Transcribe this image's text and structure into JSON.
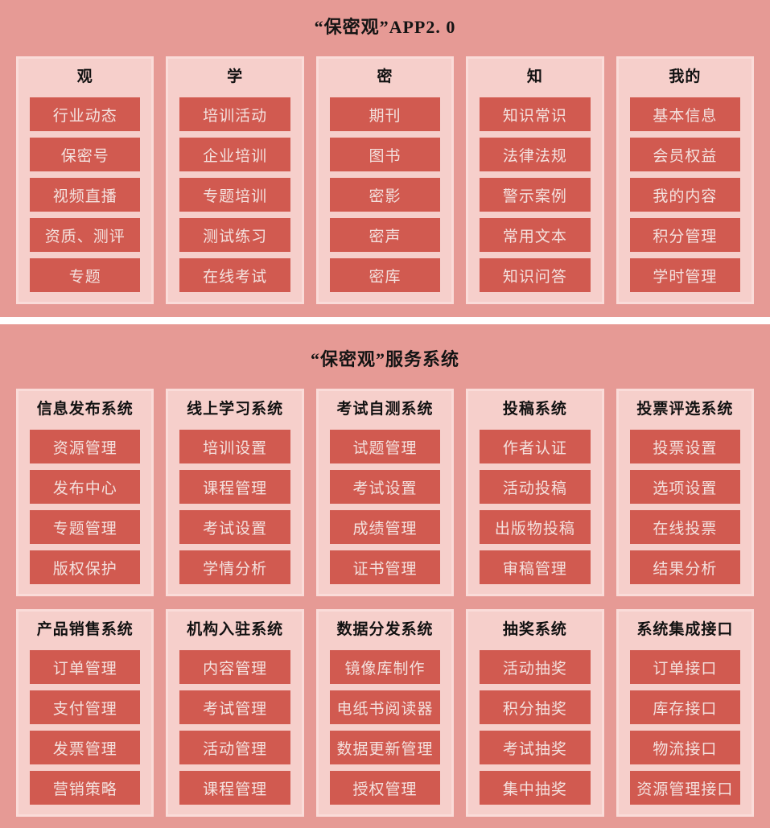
{
  "app_section": {
    "title": "“保密观”APP2. 0",
    "columns": [
      {
        "header": "观",
        "items": [
          "行业动态",
          "保密号",
          "视频直播",
          "资质、测评",
          "专题"
        ]
      },
      {
        "header": "学",
        "items": [
          "培训活动",
          "企业培训",
          "专题培训",
          "测试练习",
          "在线考试"
        ]
      },
      {
        "header": "密",
        "items": [
          "期刊",
          "图书",
          "密影",
          "密声",
          "密库"
        ]
      },
      {
        "header": "知",
        "items": [
          "知识常识",
          "法律法规",
          "警示案例",
          "常用文本",
          "知识问答"
        ]
      },
      {
        "header": "我的",
        "items": [
          "基本信息",
          "会员权益",
          "我的内容",
          "积分管理",
          "学时管理"
        ]
      }
    ]
  },
  "service_section": {
    "title": "“保密观”服务系统",
    "rows": [
      [
        {
          "header": "信息发布系统",
          "items": [
            "资源管理",
            "发布中心",
            "专题管理",
            "版权保护"
          ]
        },
        {
          "header": "线上学习系统",
          "items": [
            "培训设置",
            "课程管理",
            "考试设置",
            "学情分析"
          ]
        },
        {
          "header": "考试自测系统",
          "items": [
            "试题管理",
            "考试设置",
            "成绩管理",
            "证书管理"
          ]
        },
        {
          "header": "投稿系统",
          "items": [
            "作者认证",
            "活动投稿",
            "出版物投稿",
            "审稿管理"
          ]
        },
        {
          "header": "投票评选系统",
          "items": [
            "投票设置",
            "选项设置",
            "在线投票",
            "结果分析"
          ]
        }
      ],
      [
        {
          "header": "产品销售系统",
          "items": [
            "订单管理",
            "支付管理",
            "发票管理",
            "营销策略"
          ]
        },
        {
          "header": "机构入驻系统",
          "items": [
            "内容管理",
            "考试管理",
            "活动管理",
            "课程管理"
          ]
        },
        {
          "header": "数据分发系统",
          "items": [
            "镜像库制作",
            "电纸书阅读器",
            "数据更新管理",
            "授权管理"
          ]
        },
        {
          "header": "抽奖系统",
          "items": [
            "活动抽奖",
            "积分抽奖",
            "考试抽奖",
            "集中抽奖"
          ]
        },
        {
          "header": "系统集成接口",
          "items": [
            "订单接口",
            "库存接口",
            "物流接口",
            "资源管理接口"
          ]
        }
      ]
    ]
  },
  "colors": {
    "background": "#e69a95",
    "card_background": "#f6cfcb",
    "card_border": "#fadcd9",
    "button_background": "#d15a50",
    "button_text": "#f4e1de",
    "title_text": "#141414",
    "divider": "#ffffff"
  }
}
